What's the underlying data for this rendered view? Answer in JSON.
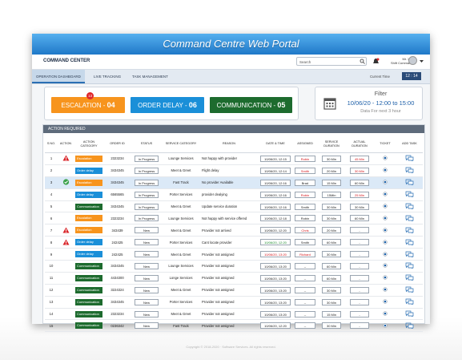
{
  "banner": {
    "title": "Command Centre Web Portal"
  },
  "header": {
    "app_name": "COMMAND CENTER",
    "search_placeholder": "Search",
    "user_name": "Mr. XYZ",
    "user_role": "Shift Commandr"
  },
  "tabs": [
    "OPERATION DASHBOARD",
    "LIVE TRACKING",
    "TASK MANAGEMENT"
  ],
  "current_time_label": "Current Time",
  "current_time": "12 : 14",
  "summary": [
    {
      "label": "ESCALATION - ",
      "count": "04",
      "color": "#f7941d",
      "badge": "13"
    },
    {
      "label": "ORDER DELAY - ",
      "count": "06",
      "color": "#1a8fd8"
    },
    {
      "label": "COMMUNICATION - ",
      "count": "05",
      "color": "#1d6b2e"
    }
  ],
  "filter": {
    "title": "Filter",
    "range": "10/06/20 - 12:00 to 15:00",
    "note": "Data For next 3 hour"
  },
  "category_colors": {
    "Escalation": "#f7941d",
    "Order delay": "#1a8fd8",
    "Communication": "#1d6b2e"
  },
  "table": {
    "title": "ACTION REQUIRED",
    "columns": [
      "S NO.",
      "ACTION",
      "ACTION CATEGORY",
      "ORDER ID",
      "STATUS",
      "SERVICE CATEGORY",
      "REASON",
      "DATE & TIME",
      "ASSIGNED",
      "SERVICE DURATION",
      "ACTUAL DURATION",
      "TICKET",
      "ADD TASK"
    ],
    "rows": [
      {
        "sno": "1",
        "icon": "warning",
        "category": "Escalation",
        "order_id": "2323234",
        "status": "In Progress",
        "service": "Lounge Services",
        "reason": "Not happy with provider",
        "date": "10/06/20, 12:15",
        "assigned": "Robin",
        "assigned_color": "red",
        "service_duration": "30 Min",
        "actual_duration": "45 Min",
        "actual_color": "red"
      },
      {
        "sno": "2",
        "category": "Order delay",
        "order_id": "3434345",
        "status": "In Progress",
        "service": "Meet & Greet",
        "reason": "Flight delay",
        "date": "10/06/20, 12:14",
        "assigned": "Smith",
        "assigned_color": "red",
        "service_duration": "20 Min",
        "actual_duration": "30 Min",
        "actual_color": "red"
      },
      {
        "sno": "3",
        "icon": "check",
        "highlight": true,
        "category": "Escalation",
        "order_id": "3434345",
        "status": "In Progress",
        "service": "Fast Track",
        "reason": "No provider Available",
        "date": "10/06/20, 12:16",
        "assigned": "Brad",
        "service_duration": "15 Min",
        "actual_duration": "60 Min"
      },
      {
        "sno": "4",
        "category": "Order delay",
        "order_id": "6565565",
        "status": "In Progress",
        "service": "Porter Services",
        "reason": "provider dealying",
        "date": "10/06/20, 12:16",
        "assigned": "Robin",
        "assigned_color": "red",
        "service_duration": "15Min",
        "actual_duration": "25 Min",
        "actual_color": "red"
      },
      {
        "sno": "5",
        "category": "Communication",
        "order_id": "3434345",
        "status": "In Progress",
        "service": "Meet & Greet",
        "reason": "Update service duration",
        "date": "10/06/20, 12:16",
        "assigned": "Smith",
        "service_duration": "30 Min",
        "actual_duration": "30 Min"
      },
      {
        "sno": "6",
        "category": "Escalation",
        "order_id": "2323234",
        "status": "In Progress",
        "service": "Lounge Services",
        "reason": "Not happy with service offered",
        "date": "10/06/20, 12:18",
        "assigned": "Robin",
        "service_duration": "30 Min",
        "actual_duration": "60 Min"
      },
      {
        "sno": "7",
        "icon": "warning",
        "category": "Escalation",
        "order_id": "343439",
        "status": "New",
        "service": "Meet & Greet",
        "reason": "Provider not arrived",
        "date": "10/06/20, 12:20",
        "assigned": "Chris",
        "assigned_color": "red",
        "service_duration": "20 Min",
        "actual_duration": "-"
      },
      {
        "sno": "8",
        "icon": "warning",
        "category": "Order delay",
        "order_id": "242425",
        "status": "New",
        "service": "Porter Services",
        "reason": "Cant locate provider",
        "date": "10/06/20, 12:20",
        "date_color": "green",
        "assigned": "Smith",
        "service_duration": "60 Min",
        "actual_duration": "-"
      },
      {
        "sno": "9",
        "category": "Order delay",
        "order_id": "242425",
        "status": "New",
        "service": "Meet & Greet",
        "reason": "Provider not assigned",
        "date": "10/06/20, 13:20",
        "date_color": "red",
        "assigned": "Richard",
        "assigned_color": "red",
        "service_duration": "30 Min",
        "actual_duration": "-"
      },
      {
        "sno": "10",
        "category": "Communication",
        "order_id": "3434345",
        "status": "New",
        "service": "Lounge Services",
        "reason": "Provider not assigned",
        "date": "10/06/20, 13:20",
        "assigned": "--",
        "service_duration": "60 Min",
        "actual_duration": "-"
      },
      {
        "sno": "11",
        "category": "Communication",
        "order_id": "4434300",
        "status": "New",
        "service": "Longe Services",
        "reason": "Provider not assigned",
        "date": "10/06/20, 13:20",
        "assigned": "--",
        "service_duration": "60 Min",
        "actual_duration": "-"
      },
      {
        "sno": "12",
        "category": "Communication",
        "order_id": "3224324",
        "status": "New",
        "service": "Meet & Greet",
        "reason": "Provider not assigned",
        "date": "10/06/20, 13:20",
        "assigned": "--",
        "service_duration": "30 Min",
        "actual_duration": "-"
      },
      {
        "sno": "13",
        "category": "Communication",
        "order_id": "3434345",
        "status": "New",
        "service": "Porter Services",
        "reason": "Provider not assigned",
        "date": "10/06/20, 13:20",
        "assigned": "--",
        "service_duration": "30 Min",
        "actual_duration": "-"
      },
      {
        "sno": "14",
        "category": "Communication",
        "order_id": "2323234",
        "status": "New",
        "service": "Meet & Greet",
        "reason": "Provider not assigned",
        "date": "10/06/20, 13:20",
        "assigned": "--",
        "service_duration": "15 Min",
        "actual_duration": "-"
      },
      {
        "sno": "15",
        "category": "Communication",
        "order_id": "0236342",
        "status": "New",
        "service": "Fast Track",
        "reason": "Provider not assigned",
        "date": "10/06/20, 12:20",
        "assigned": "--",
        "service_duration": "30 Min",
        "actual_duration": "-"
      }
    ]
  },
  "footer": {
    "copyright": "Copyright © 2018-2020 · Software Services. All rights reserved."
  }
}
